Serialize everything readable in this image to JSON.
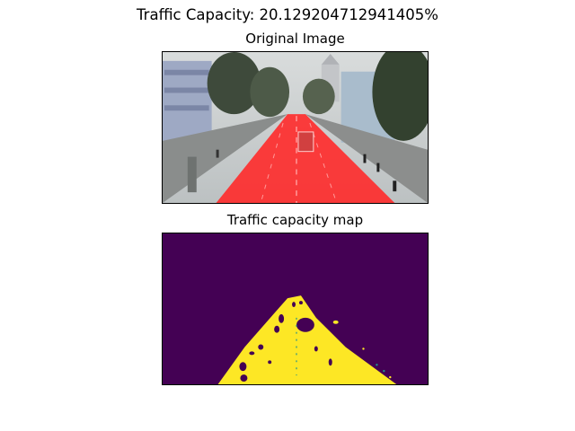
{
  "figure": {
    "title": "Traffic Capacity: 20.129204712941405%"
  },
  "panels": [
    {
      "title": "Original Image"
    },
    {
      "title": "Traffic capacity map"
    }
  ],
  "colors": {
    "road_overlay": "#ff2a2a",
    "capacity_background": "#440154",
    "capacity_road": "#fde725",
    "capacity_mid": "#21918c"
  },
  "metrics": {
    "traffic_capacity_percent": 20.129204712941405
  }
}
